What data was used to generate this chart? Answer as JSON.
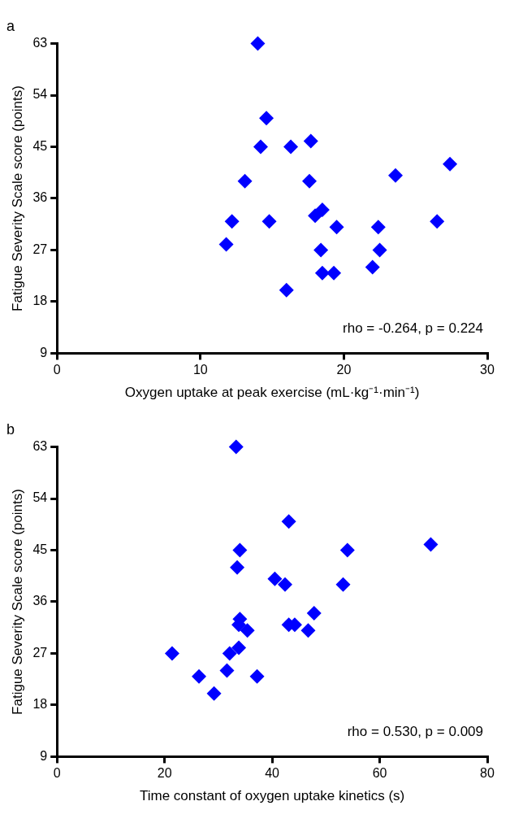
{
  "chart_data": [
    {
      "type": "scatter",
      "title": "a",
      "xlabel": "Oxygen uptake at peak exercise (mL·kg⁻¹·min⁻¹)",
      "ylabel": "Fatigue Severity Scale score (points)",
      "xlim": [
        0,
        30
      ],
      "xticks": [
        0,
        10,
        20,
        30
      ],
      "ylim": [
        9,
        63
      ],
      "yticks": [
        9,
        18,
        27,
        36,
        45,
        54,
        63
      ],
      "marker": "diamond",
      "annotations": [
        "rho = -0.264, p = 0.224"
      ],
      "series": [
        {
          "color": "#0000ff",
          "x": [
            14.0,
            14.6,
            14.2,
            16.3,
            17.7,
            13.1,
            17.6,
            23.6,
            27.4,
            12.2,
            14.8,
            18.0,
            18.5,
            19.5,
            22.4,
            26.5,
            11.8,
            18.4,
            22.5,
            22.0,
            18.5,
            19.3,
            16.0
          ],
          "values": [
            63,
            50,
            45,
            45,
            46,
            39,
            39,
            40,
            42,
            32,
            32,
            33,
            34,
            31,
            31,
            32,
            28,
            27,
            27,
            24,
            23,
            23,
            20
          ]
        }
      ]
    },
    {
      "type": "scatter",
      "title": "b",
      "xlabel": "Time constant of oxygen uptake kinetics (s)",
      "ylabel": "Fatigue Severity Scale score (points)",
      "xlim": [
        0,
        80
      ],
      "xticks": [
        0,
        20,
        40,
        60,
        80
      ],
      "ylim": [
        9,
        63
      ],
      "yticks": [
        9,
        18,
        27,
        36,
        45,
        54,
        63
      ],
      "marker": "diamond",
      "annotations": [
        "rho = 0.530, p = 0.009"
      ],
      "series": [
        {
          "color": "#0000ff",
          "x": [
            33.3,
            43.1,
            34.0,
            54.0,
            69.5,
            33.5,
            40.5,
            42.4,
            53.2,
            47.8,
            34.0,
            33.8,
            43.1,
            44.2,
            35.4,
            46.7,
            33.8,
            32.1,
            21.4,
            31.6,
            26.4,
            37.2,
            29.2
          ],
          "values": [
            63,
            50,
            45,
            45,
            46,
            42,
            40,
            39,
            39,
            34,
            33,
            32,
            32,
            32,
            31,
            31,
            28,
            27,
            27,
            24,
            23,
            23,
            20
          ]
        }
      ]
    }
  ]
}
